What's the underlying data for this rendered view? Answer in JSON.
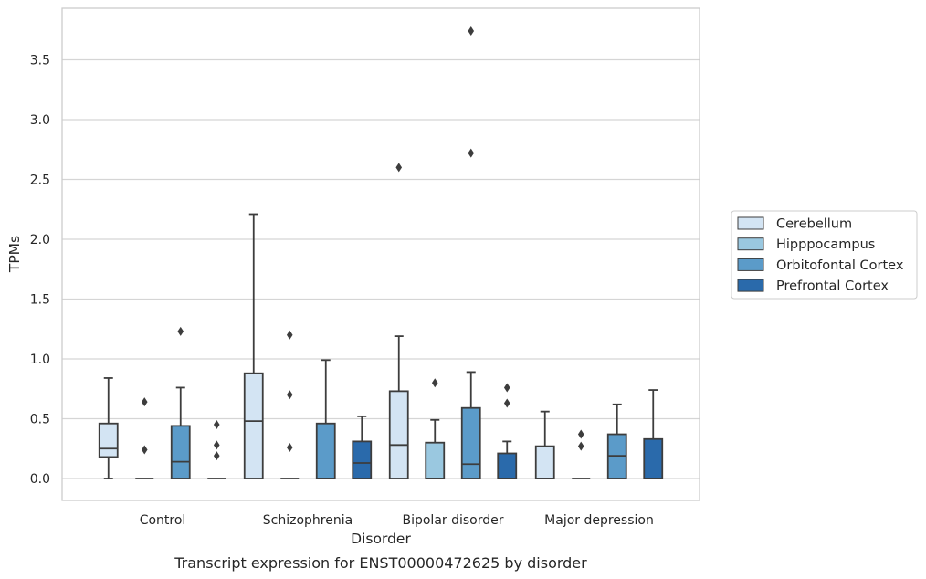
{
  "chart_data": {
    "type": "box",
    "xlabel": "Disorder",
    "ylabel": "TPMs",
    "caption": "Transcript expression for ENST00000472625 by disorder",
    "ylim": [
      -0.18,
      3.95
    ],
    "yticks": [
      0.0,
      0.5,
      1.0,
      1.5,
      2.0,
      2.5,
      3.0,
      3.5
    ],
    "ytick_labels": [
      "0.0",
      "0.5",
      "1.0",
      "1.5",
      "2.0",
      "2.5",
      "3.0",
      "3.5"
    ],
    "grid": "horizontal",
    "legend_position": "outside-right",
    "categories": [
      "Control",
      "Schizophrenia",
      "Bipolar disorder",
      "Major depression"
    ],
    "series": [
      {
        "name": "Cerebellum",
        "color": "#d3e4f3",
        "boxes": [
          {
            "whisker_low": 0.0,
            "q1": 0.18,
            "median": 0.25,
            "q3": 0.46,
            "whisker_high": 0.84,
            "outliers": []
          },
          {
            "whisker_low": 0.0,
            "q1": 0.0,
            "median": 0.48,
            "q3": 0.88,
            "whisker_high": 2.21,
            "outliers": []
          },
          {
            "whisker_low": 0.0,
            "q1": 0.0,
            "median": 0.28,
            "q3": 0.73,
            "whisker_high": 1.19,
            "outliers": [
              2.6
            ]
          },
          {
            "whisker_low": 0.0,
            "q1": 0.0,
            "median": 0.0,
            "q3": 0.27,
            "whisker_high": 0.56,
            "outliers": []
          }
        ]
      },
      {
        "name": "Hipppocampus",
        "color": "#9ac8e0",
        "boxes": [
          {
            "whisker_low": 0.0,
            "q1": 0.0,
            "median": 0.0,
            "q3": 0.0,
            "whisker_high": 0.0,
            "outliers": [
              0.24,
              0.64
            ]
          },
          {
            "whisker_low": 0.0,
            "q1": 0.0,
            "median": 0.0,
            "q3": 0.0,
            "whisker_high": 0.0,
            "outliers": [
              0.26,
              0.7,
              1.2
            ]
          },
          {
            "whisker_low": 0.0,
            "q1": 0.0,
            "median": 0.0,
            "q3": 0.3,
            "whisker_high": 0.49,
            "outliers": [
              0.8
            ]
          },
          {
            "whisker_low": 0.0,
            "q1": 0.0,
            "median": 0.0,
            "q3": 0.0,
            "whisker_high": 0.0,
            "outliers": [
              0.27,
              0.37
            ]
          }
        ]
      },
      {
        "name": "Orbitofontal Cortex",
        "color": "#5b9bc9",
        "boxes": [
          {
            "whisker_low": 0.0,
            "q1": 0.0,
            "median": 0.14,
            "q3": 0.44,
            "whisker_high": 0.76,
            "outliers": [
              1.23
            ]
          },
          {
            "whisker_low": 0.0,
            "q1": 0.0,
            "median": 0.0,
            "q3": 0.46,
            "whisker_high": 0.99,
            "outliers": []
          },
          {
            "whisker_low": 0.0,
            "q1": 0.0,
            "median": 0.12,
            "q3": 0.59,
            "whisker_high": 0.89,
            "outliers": [
              2.72,
              3.74
            ]
          },
          {
            "whisker_low": 0.0,
            "q1": 0.0,
            "median": 0.19,
            "q3": 0.37,
            "whisker_high": 0.62,
            "outliers": []
          }
        ]
      },
      {
        "name": "Prefrontal Cortex",
        "color": "#2a6aab",
        "boxes": [
          {
            "whisker_low": 0.0,
            "q1": 0.0,
            "median": 0.0,
            "q3": 0.0,
            "whisker_high": 0.0,
            "outliers": [
              0.19,
              0.28,
              0.45
            ]
          },
          {
            "whisker_low": 0.0,
            "q1": 0.0,
            "median": 0.13,
            "q3": 0.31,
            "whisker_high": 0.52,
            "outliers": []
          },
          {
            "whisker_low": 0.0,
            "q1": 0.0,
            "median": 0.0,
            "q3": 0.21,
            "whisker_high": 0.31,
            "outliers": [
              0.63,
              0.76
            ]
          },
          {
            "whisker_low": 0.0,
            "q1": 0.0,
            "median": 0.0,
            "q3": 0.33,
            "whisker_high": 0.74,
            "outliers": []
          }
        ]
      }
    ]
  }
}
